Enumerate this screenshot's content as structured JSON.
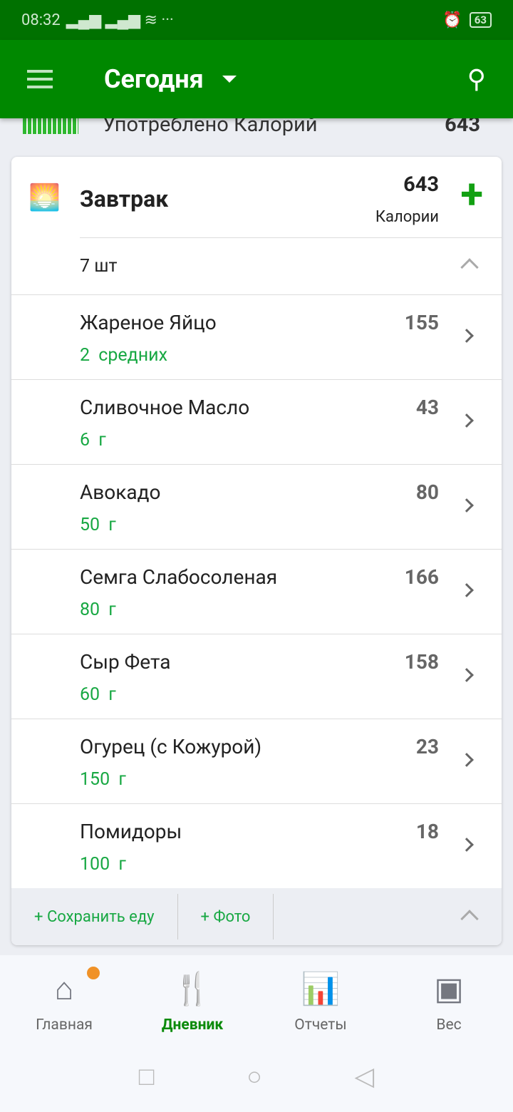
{
  "status": {
    "time": "08:32",
    "battery": "63"
  },
  "appbar": {
    "title": "Сегодня"
  },
  "summary": {
    "label": "Употреблено Калорий",
    "value": "643"
  },
  "meal": {
    "name": "Завтрак",
    "calories": "643",
    "calories_label": "Калории",
    "count": "7 шт",
    "items": [
      {
        "name": "Жареное Яйцо",
        "qty": "2 средних",
        "cal": "155"
      },
      {
        "name": "Сливочное Масло",
        "qty": "6 г",
        "cal": "43"
      },
      {
        "name": "Авокадо",
        "qty": "50 г",
        "cal": "80"
      },
      {
        "name": "Семга Слабосоленая",
        "qty": "80 г",
        "cal": "166"
      },
      {
        "name": "Сыр Фета",
        "qty": "60 г",
        "cal": "158"
      },
      {
        "name": "Огурец (с Кожурой)",
        "qty": "150 г",
        "cal": "23"
      },
      {
        "name": "Помидоры",
        "qty": "100 г",
        "cal": "18"
      }
    ],
    "save_food": "+ Сохранить еду",
    "photo": "+ Фото"
  },
  "tabs": [
    {
      "label": "Главная",
      "icon": "home-icon"
    },
    {
      "label": "Дневник",
      "icon": "fork-knife-icon"
    },
    {
      "label": "Отчеты",
      "icon": "reports-icon"
    },
    {
      "label": "Вес",
      "icon": "scale-icon"
    }
  ],
  "colors": {
    "appbar": "#008800",
    "accent": "#18a843"
  }
}
